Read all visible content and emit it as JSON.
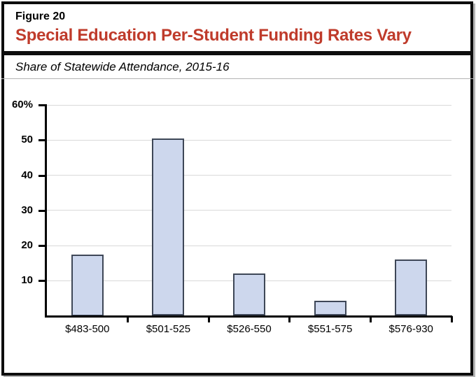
{
  "header": {
    "figure_label": "Figure 20",
    "title": "Special Education Per-Student Funding Rates Vary",
    "subtitle": "Share of Statewide Attendance, 2015-16"
  },
  "colors": {
    "title_red": "#bf3b2b",
    "bar_fill": "#cdd7ed",
    "bar_border": "#3e4757",
    "gridline": "#d9d9d9",
    "axis": "#000000",
    "frame": "#0d0d0d"
  },
  "chart_data": {
    "type": "bar",
    "title": "Special Education Per-Student Funding Rates Vary",
    "subtitle": "Share of Statewide Attendance, 2015-16",
    "categories": [
      "$483-500",
      "$501-525",
      "$526-550",
      "$551-575",
      "$576-930"
    ],
    "values": [
      17.5,
      50.4,
      12.0,
      4.3,
      16.1
    ],
    "ylim": [
      0,
      60
    ],
    "yticks": [
      {
        "value": 10,
        "label": "10"
      },
      {
        "value": 20,
        "label": "20"
      },
      {
        "value": 30,
        "label": "30"
      },
      {
        "value": 40,
        "label": "40"
      },
      {
        "value": 50,
        "label": "50"
      },
      {
        "value": 60,
        "label": "60%"
      }
    ],
    "grid": true,
    "legend": false,
    "xlabel": "",
    "ylabel": ""
  }
}
